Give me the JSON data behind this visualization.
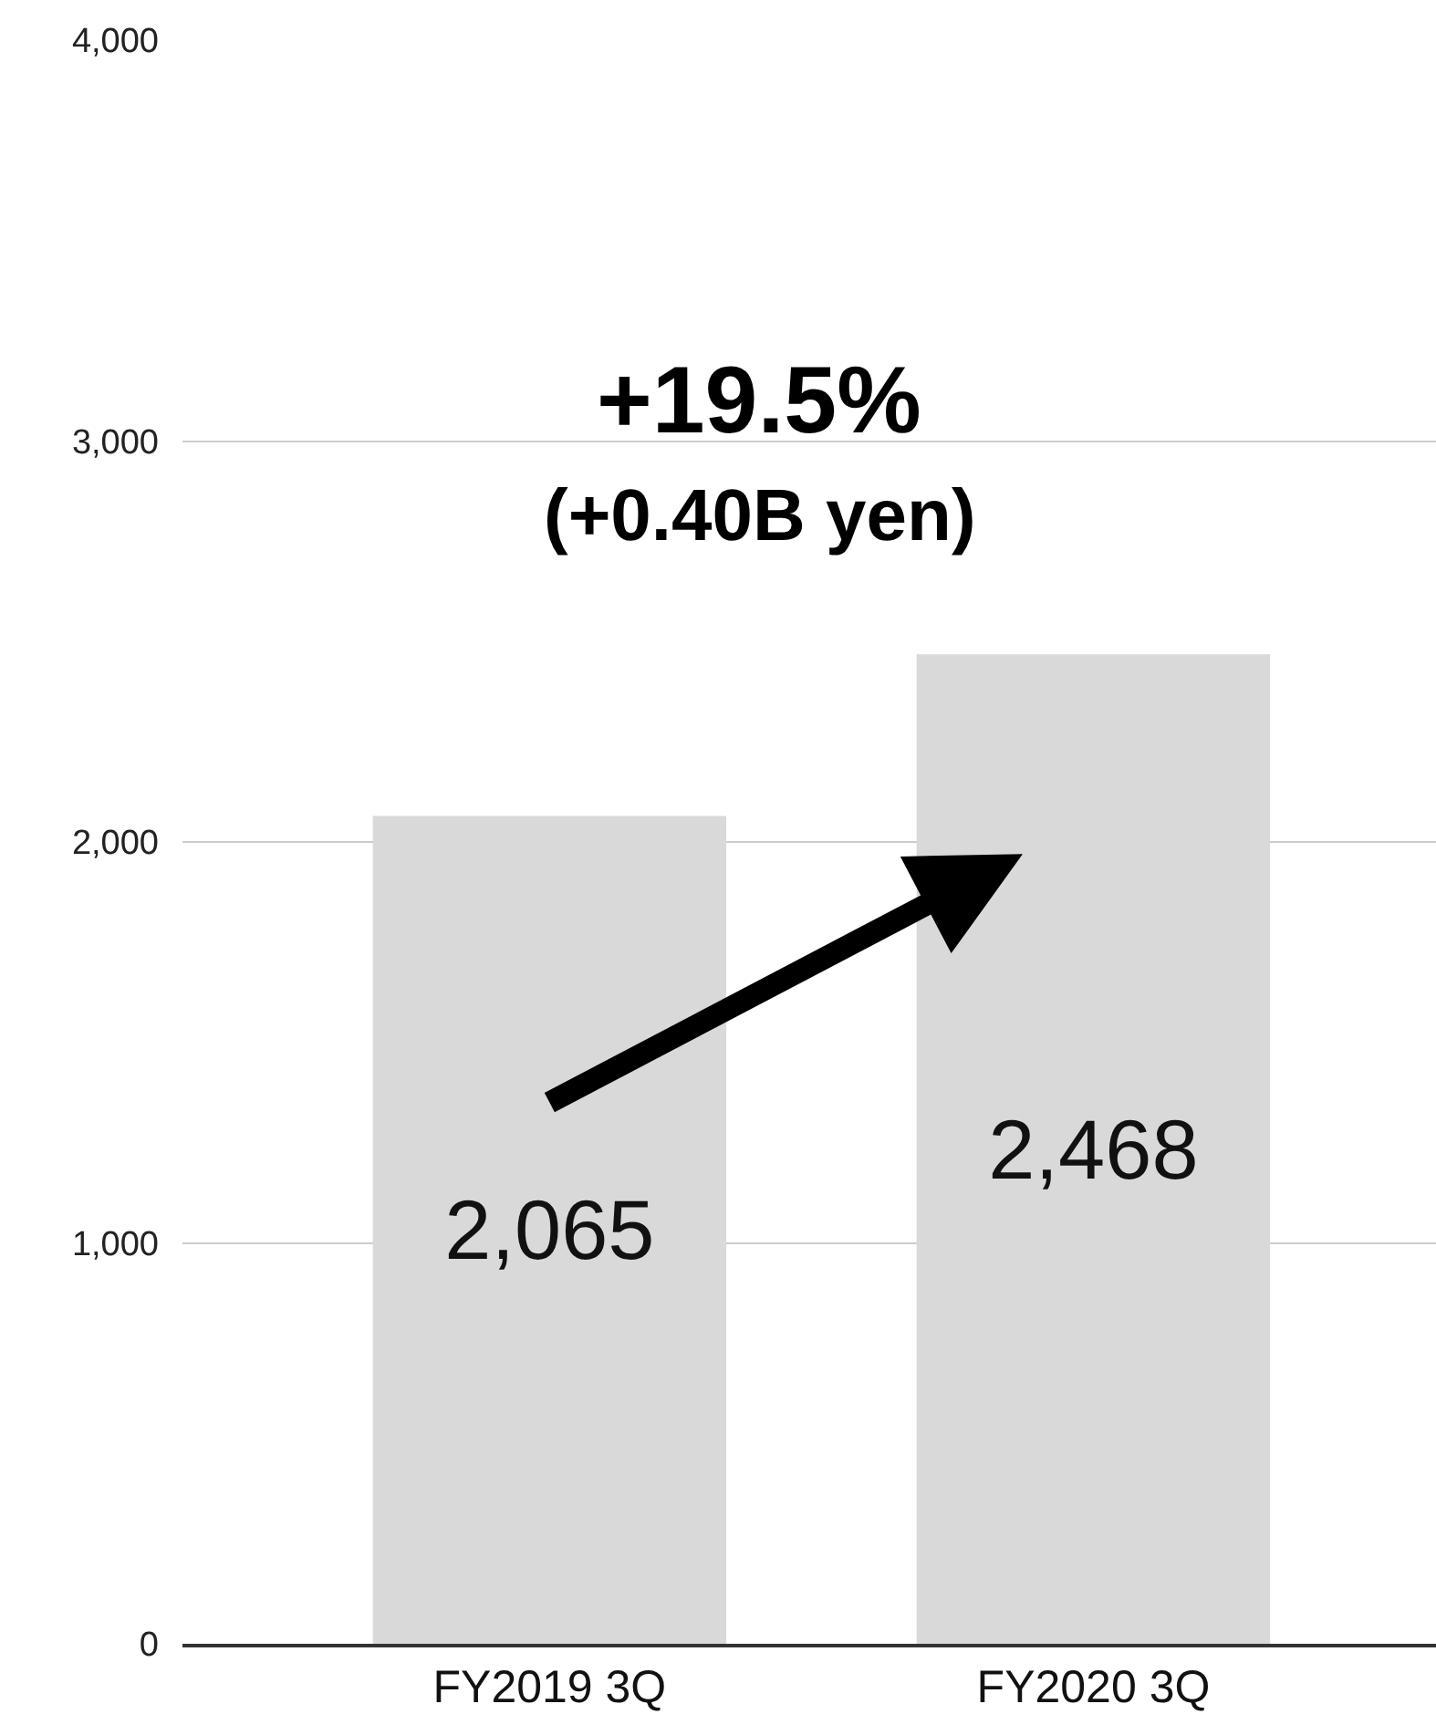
{
  "chart_data": {
    "type": "bar",
    "categories": [
      "FY2019 3Q",
      "FY2020 3Q"
    ],
    "values": [
      2065,
      2468
    ],
    "value_labels": [
      "2,065",
      "2,468"
    ],
    "color": "#d9d9d9",
    "ylim": [
      0,
      4000
    ],
    "yticks": [
      0,
      {
        "value": 1000,
        "label": "1,000"
      },
      {
        "value": 2000,
        "label": "2,000"
      },
      {
        "value": 3000,
        "label": "3,000"
      },
      {
        "value": 4000,
        "label": "4,000"
      }
    ],
    "grid": "y",
    "legend": false,
    "annotations": [
      "+19.5%",
      "(+0.40B yen)"
    ]
  }
}
